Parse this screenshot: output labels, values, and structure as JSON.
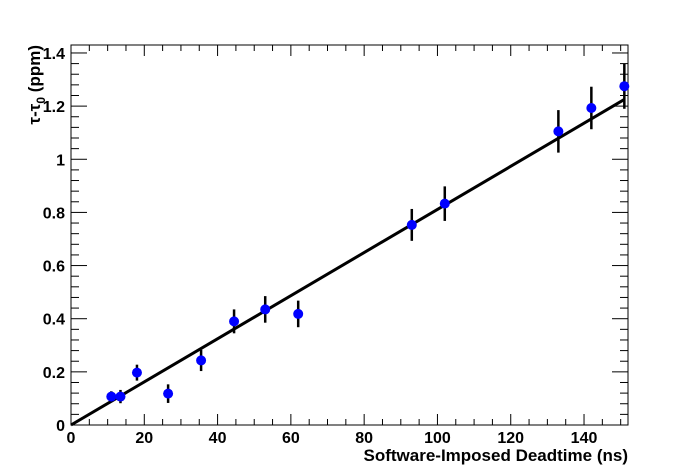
{
  "chart_data": {
    "type": "scatter",
    "xlabel": "Software-Imposed Deadtime (ns)",
    "ylabel": {
      "main": "τ-τ",
      "sub": "0",
      "unit": " (ppm)"
    },
    "xlim": [
      0,
      152
    ],
    "ylim": [
      0,
      1.43
    ],
    "x_ticks": [
      0,
      20,
      40,
      60,
      80,
      100,
      120,
      140
    ],
    "x_tick_labels": [
      "0",
      "20",
      "40",
      "60",
      "80",
      "100",
      "120",
      "140"
    ],
    "y_ticks": [
      0,
      0.2,
      0.4,
      0.6,
      0.8,
      1,
      1.2,
      1.4
    ],
    "y_tick_labels": [
      "0",
      "0.2",
      "0.4",
      "0.6",
      "0.8",
      "1",
      "1.2",
      "1.4"
    ],
    "grid": false,
    "colors": {
      "points": "#0000ff",
      "fit": "#000000",
      "errorbars": "#000000"
    },
    "series": [
      {
        "x": [
          11,
          13.5,
          18,
          26.5,
          35.5,
          44.5,
          53,
          62,
          93,
          102,
          133,
          142,
          151
        ],
        "y": [
          0.107,
          0.107,
          0.197,
          0.118,
          0.243,
          0.39,
          0.435,
          0.418,
          0.753,
          0.833,
          1.105,
          1.193,
          1.275
        ],
        "yerr": [
          0.02,
          0.025,
          0.03,
          0.035,
          0.04,
          0.045,
          0.05,
          0.05,
          0.06,
          0.065,
          0.08,
          0.08,
          0.085
        ]
      }
    ],
    "fit_line": {
      "x": [
        0,
        151
      ],
      "y": [
        0,
        1.225
      ]
    }
  }
}
